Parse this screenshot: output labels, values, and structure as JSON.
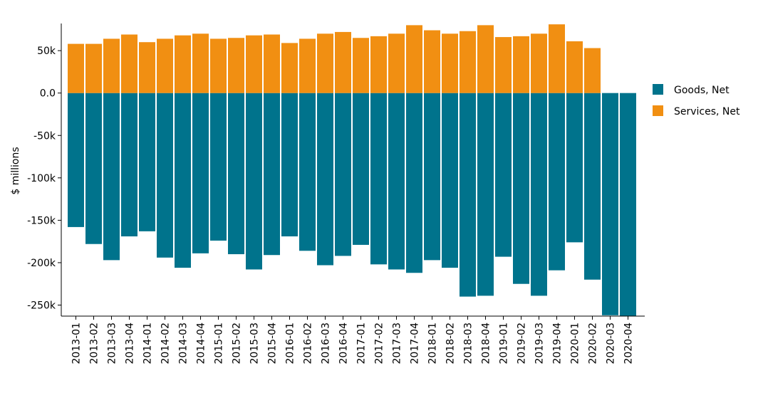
{
  "chart_data": {
    "type": "bar",
    "stacked": true,
    "categories": [
      "2013-01",
      "2013-02",
      "2013-03",
      "2013-04",
      "2014-01",
      "2014-02",
      "2014-03",
      "2014-04",
      "2015-01",
      "2015-02",
      "2015-03",
      "2015-04",
      "2016-01",
      "2016-02",
      "2016-03",
      "2016-04",
      "2017-01",
      "2017-02",
      "2017-03",
      "2017-04",
      "2018-01",
      "2018-02",
      "2018-03",
      "2018-04",
      "2019-01",
      "2019-02",
      "2019-03",
      "2019-04",
      "2020-01",
      "2020-02",
      "2020-03",
      "2020-04"
    ],
    "series": [
      {
        "name": "Goods, Net",
        "color": "#00738c",
        "values": [
          -158000,
          -178000,
          -197000,
          -169000,
          -163000,
          -194000,
          -206000,
          -189000,
          -174000,
          -190000,
          -208000,
          -191000,
          -169000,
          -186000,
          -203000,
          -192000,
          -179000,
          -202000,
          -208000,
          -212000,
          -197000,
          -206000,
          -240000,
          -239000,
          -193000,
          -225000,
          -239000,
          -209000,
          -176000,
          -220000,
          -262000,
          -263000
        ]
      },
      {
        "name": "Services, Net",
        "color": "#f18f12",
        "values": [
          58000,
          58000,
          64000,
          69000,
          60000,
          64000,
          68000,
          70000,
          64000,
          65000,
          68000,
          69000,
          59000,
          64000,
          70000,
          72000,
          65000,
          67000,
          70000,
          80000,
          74000,
          70000,
          73000,
          80000,
          66000,
          67000,
          70000,
          81000,
          61000,
          53000,
          0,
          0
        ]
      }
    ],
    "xlabel": "",
    "ylabel": "$ millions",
    "ylim": [
      -263000,
      82000
    ],
    "yticks": [
      -250000,
      -200000,
      -150000,
      -100000,
      -50000,
      0,
      50000
    ],
    "ytick_labels": [
      "-250k",
      "-200k",
      "-150k",
      "-100k",
      "-50k",
      "0.0",
      "50k"
    ],
    "grid": false,
    "legend_position": "right"
  }
}
